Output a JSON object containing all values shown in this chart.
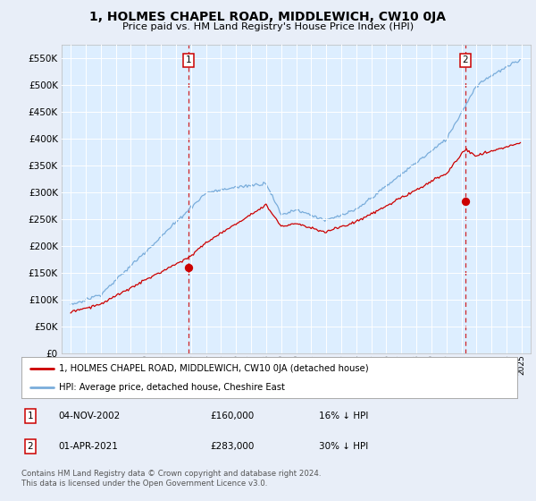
{
  "title": "1, HOLMES CHAPEL ROAD, MIDDLEWICH, CW10 0JA",
  "subtitle": "Price paid vs. HM Land Registry's House Price Index (HPI)",
  "background_color": "#e8eef8",
  "plot_bg_color": "#ddeeff",
  "legend_label_red": "1, HOLMES CHAPEL ROAD, MIDDLEWICH, CW10 0JA (detached house)",
  "legend_label_blue": "HPI: Average price, detached house, Cheshire East",
  "transaction1_date": "04-NOV-2002",
  "transaction1_price": "£160,000",
  "transaction1_note": "16% ↓ HPI",
  "transaction2_date": "01-APR-2021",
  "transaction2_price": "£283,000",
  "transaction2_note": "30% ↓ HPI",
  "footer": "Contains HM Land Registry data © Crown copyright and database right 2024.\nThis data is licensed under the Open Government Licence v3.0.",
  "ylim": [
    0,
    575000
  ],
  "yticks": [
    0,
    50000,
    100000,
    150000,
    200000,
    250000,
    300000,
    350000,
    400000,
    450000,
    500000,
    550000
  ],
  "red_color": "#cc0000",
  "blue_color": "#7aaddb",
  "vline_color": "#cc0000"
}
